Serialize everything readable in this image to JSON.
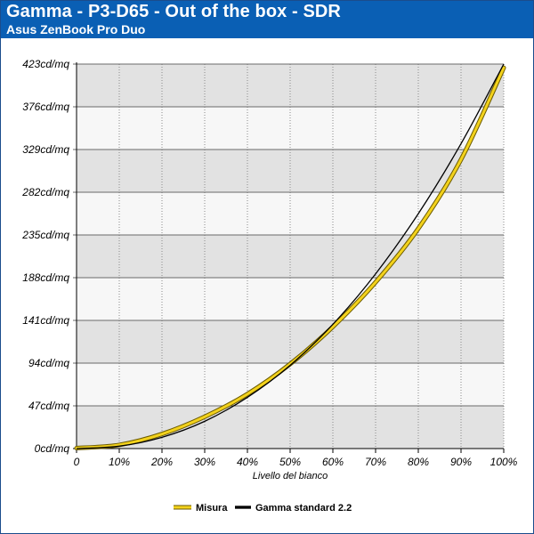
{
  "header": {
    "title": "Gamma - P3-D65 - Out of the box - SDR",
    "subtitle": "Asus ZenBook Pro Duo"
  },
  "colors": {
    "header_bg": "#0a5fb4",
    "band_dark": "#e2e2e2",
    "band_light": "#f7f7f7",
    "measured": "#f3d21c",
    "reference": "#000000"
  },
  "chart_data": {
    "type": "line",
    "title": "Gamma - P3-D65 - Out of the box - SDR",
    "subtitle": "Asus ZenBook Pro Duo",
    "xlabel": "Livello del bianco",
    "ylabel": "",
    "x": [
      0,
      10,
      20,
      30,
      40,
      50,
      60,
      70,
      80,
      90,
      100
    ],
    "x_tick_labels": [
      "0",
      "10%",
      "20%",
      "30%",
      "40%",
      "50%",
      "60%",
      "70%",
      "80%",
      "90%",
      "100%"
    ],
    "y_tick_labels": [
      "0cd/mq",
      "47cd/mq",
      "94cd/mq",
      "141cd/mq",
      "188cd/mq",
      "235cd/mq",
      "282cd/mq",
      "329cd/mq",
      "376cd/mq",
      "423cd/mq"
    ],
    "y_ticks": [
      0,
      47,
      94,
      141,
      188,
      235,
      282,
      329,
      376,
      423
    ],
    "xlim": [
      0,
      100
    ],
    "ylim": [
      0,
      423
    ],
    "grid": true,
    "legend_position": "bottom-center",
    "series": [
      {
        "name": "Misura",
        "color": "#f3d21c",
        "values": [
          0.5,
          4,
          16,
          35,
          60,
          93,
          134,
          183,
          242,
          318,
          419
        ]
      },
      {
        "name": "Gamma standard 2.2",
        "color": "#000000",
        "values": [
          0,
          2.7,
          12.4,
          30,
          56.4,
          91.6,
          136.7,
          192.2,
          258.4,
          335.4,
          423
        ]
      }
    ]
  }
}
